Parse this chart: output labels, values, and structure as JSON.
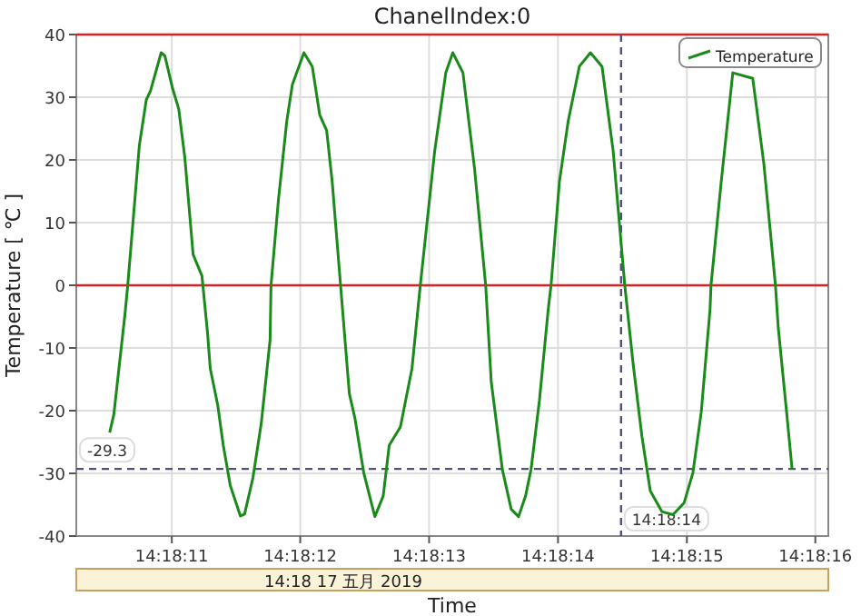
{
  "chart_data": {
    "type": "line",
    "title": "ChanelIndex:0",
    "xlabel": "Time",
    "ylabel": "Temperature [ ℃ ]",
    "annotations": [
      "14:18 17 五月 2019"
    ],
    "x": [
      14.302922,
      14.302931,
      14.302955,
      14.302961,
      14.302986,
      14.303001,
      14.30301,
      14.303033,
      14.303041,
      14.303057,
      14.303071,
      14.303084,
      14.303102,
      14.303121,
      14.303133,
      14.303139,
      14.303155,
      14.303167,
      14.303182,
      14.303204,
      14.303213,
      14.303231,
      14.303249,
      14.303268,
      14.30327,
      14.303286,
      14.303304,
      14.303316,
      14.303341,
      14.303359,
      14.303375,
      14.30339,
      14.303402,
      14.30342,
      14.303439,
      14.303451,
      14.30347,
      14.303494,
      14.303512,
      14.303525,
      14.303549,
      14.303574,
      14.303592,
      14.303623,
      14.303647,
      14.303662,
      14.303684,
      14.303709,
      14.303733,
      14.303745,
      14.303769,
      14.303788,
      14.303804,
      14.303819,
      14.303831,
      14.303849,
      14.303868,
      14.303874,
      14.303892,
      14.303911,
      14.303935,
      14.303959,
      14.303984,
      14.304008,
      14.304033,
      14.304051,
      14.30407,
      14.304088,
      14.304113,
      14.304137,
      14.304161,
      14.30418,
      14.304198,
      14.304217,
      14.304219,
      14.304241,
      14.304266,
      14.304309,
      14.304333,
      14.304358,
      14.304364,
      14.304382,
      14.304394
    ],
    "series": [
      {
        "name": "Temperature",
        "color": "#1a8a1a",
        "values": [
          -23.5,
          -20.6,
          -4.6,
          0,
          22.3,
          29.6,
          31,
          37.1,
          36.6,
          31.6,
          28.1,
          20.4,
          4.9,
          1.5,
          -7.5,
          -13.3,
          -19.1,
          -25.5,
          -31.9,
          -36.8,
          -36.5,
          -30.7,
          -22,
          -8.7,
          0,
          13.6,
          26.2,
          32,
          37.1,
          34.9,
          27.2,
          24.7,
          16.5,
          0,
          -17.3,
          -21.2,
          -29.9,
          -36.9,
          -33.6,
          -25.5,
          -22.6,
          -13.3,
          0,
          21.4,
          33.9,
          37.1,
          33.9,
          18.6,
          0,
          -15.4,
          -29.4,
          -35.7,
          -36.9,
          -33.6,
          -29.3,
          -18.3,
          -3.8,
          0,
          16.5,
          26.2,
          34.9,
          37.1,
          34.9,
          21.4,
          0,
          -12.5,
          -24.1,
          -32.8,
          -36.1,
          -36.6,
          -34.7,
          -29.9,
          -20.2,
          -3.8,
          0,
          16.5,
          33.9,
          33,
          19.4,
          0,
          -6.7,
          -20.2,
          -29.4
        ]
      }
    ],
    "xlim": [
      14.30285,
      14.304472
    ],
    "xticks": [
      {
        "value": 14.303056,
        "label": "14:18:11"
      },
      {
        "value": 14.303333,
        "label": "14:18:12"
      },
      {
        "value": 14.303611,
        "label": "14:18:13"
      },
      {
        "value": 14.303889,
        "label": "14:18:14"
      },
      {
        "value": 14.304167,
        "label": "14:18:15"
      },
      {
        "value": 14.304444,
        "label": "14:18:16"
      }
    ],
    "ylim": [
      -40,
      40
    ],
    "yticks": [
      -40,
      -30,
      -20,
      -10,
      0,
      10,
      20,
      30,
      40
    ],
    "ref_lines": [
      {
        "axis": "y",
        "value": 40,
        "label": null,
        "color": "#e02020",
        "line_style": "solid"
      },
      {
        "axis": "y",
        "value": 0,
        "label": null,
        "color": "#e02020",
        "line_style": "solid"
      },
      {
        "axis": "y",
        "value": -29.3,
        "label": "-29.3",
        "color": "#505080",
        "line_style": "dashed"
      },
      {
        "axis": "x",
        "value": 14.304025,
        "label": "14:18:14",
        "color": "#505080",
        "line_style": "dashed"
      }
    ],
    "grid": true,
    "legend": "top right",
    "marker": "none",
    "line_style": "solid"
  }
}
